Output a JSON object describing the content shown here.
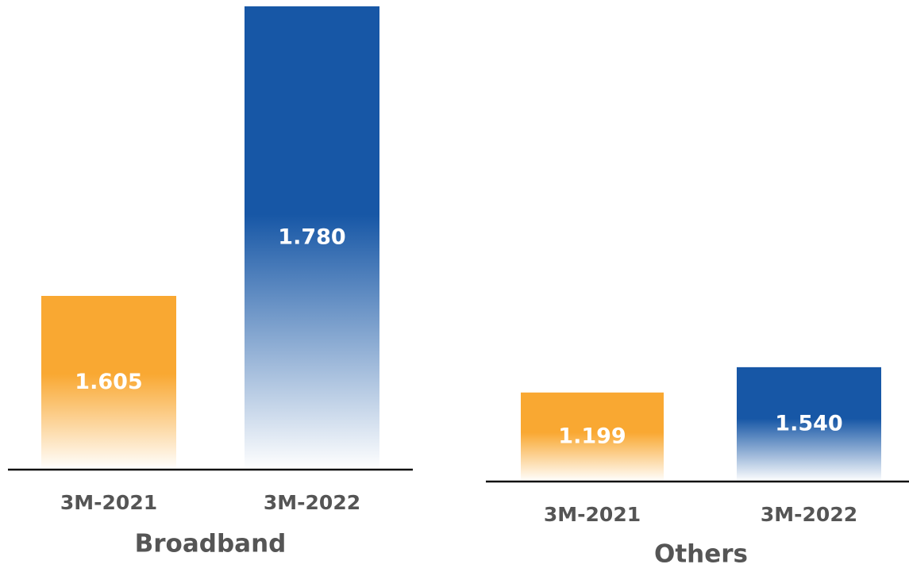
{
  "chart_data": [
    {
      "type": "bar",
      "xlabel": "Broadband",
      "categories": [
        "3M-2021",
        "3M-2022"
      ],
      "values": [
        1.605,
        1.78
      ],
      "value_labels": [
        "1.605",
        "1.780"
      ],
      "colors": [
        "#f9a832",
        "#1757a6"
      ],
      "ylim": [
        1.5,
        1.78
      ]
    },
    {
      "type": "bar",
      "xlabel": "Others",
      "categories": [
        "3M-2021",
        "3M-2022"
      ],
      "values": [
        1.199,
        1.54
      ],
      "value_labels": [
        "1.199",
        "1.540"
      ],
      "colors": [
        "#f9a832",
        "#1757a6"
      ],
      "ylim": [
        0,
        6.4
      ]
    }
  ]
}
